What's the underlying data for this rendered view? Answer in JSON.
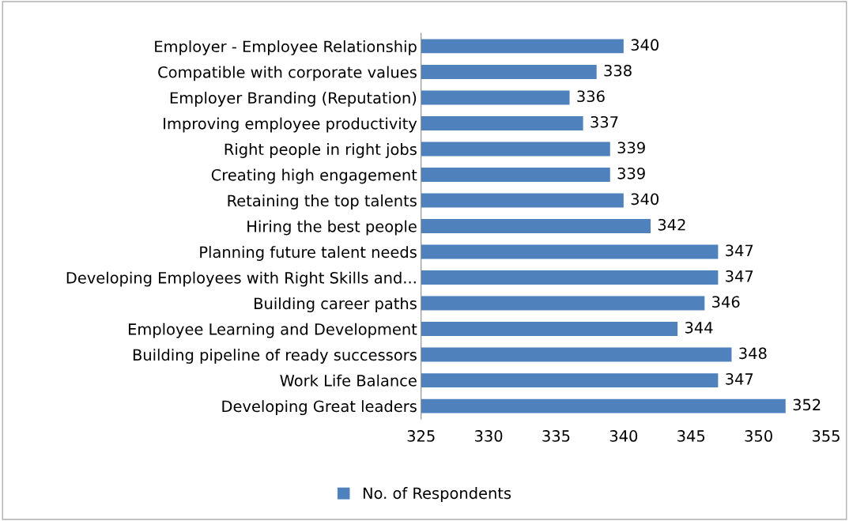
{
  "chart_data": {
    "type": "bar",
    "orientation": "horizontal",
    "categories": [
      "Employer - Employee Relationship",
      "Compatible with corporate values",
      "Employer Branding (Reputation)",
      "Improving employee productivity",
      "Right people in right jobs",
      "Creating high engagement",
      "Retaining the top talents",
      "Hiring the best people",
      "Planning future talent needs",
      "Developing Employees with Right Skills and...",
      "Building career paths",
      "Employee Learning and Development",
      "Building pipeline of ready successors",
      "Work Life Balance",
      "Developing Great leaders"
    ],
    "series": [
      {
        "name": "No. of Respondents",
        "color": "#4f81bd",
        "values": [
          340,
          338,
          336,
          337,
          339,
          339,
          340,
          342,
          347,
          347,
          346,
          344,
          348,
          347,
          352
        ]
      }
    ],
    "xlim": [
      325,
      355
    ],
    "xticks": [
      325,
      330,
      335,
      340,
      345,
      350,
      355
    ],
    "data_labels": true,
    "legend": "bottom",
    "grid": false
  }
}
